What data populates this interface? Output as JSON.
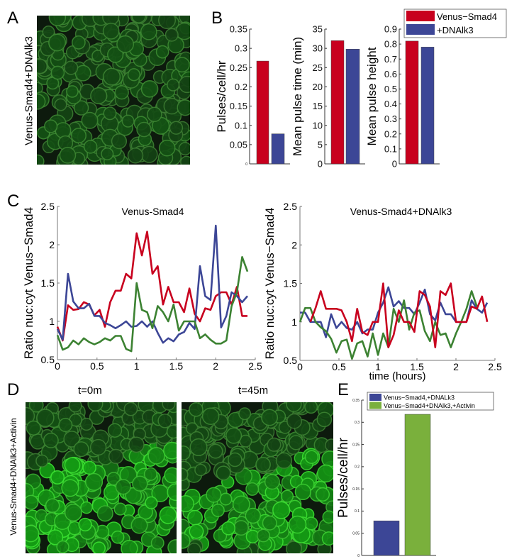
{
  "panels": {
    "a": "A",
    "b": "B",
    "c": "C",
    "d": "D",
    "e": "E"
  },
  "panel_a": {
    "side_label": "Venus-Smad4+DNAlk3"
  },
  "panel_d": {
    "side_label": "Venus-Smad4+DNAlk3+Activin",
    "titles": [
      "t=0m",
      "t=45m"
    ]
  },
  "colors": {
    "red": "#c8001e",
    "blue": "#3c4696",
    "green": "#3c8232",
    "lightgreen": "#7ab03c",
    "cells": "#4fbf3f"
  },
  "chart_data": [
    {
      "id": "B1",
      "type": "bar",
      "ylabel": "Pulses/cell/hr",
      "ylim": [
        0,
        0.35
      ],
      "yticks": [
        "0",
        "0.05",
        "0.1",
        "0.15",
        "0.2",
        "0.25",
        "0.3",
        "0.35"
      ],
      "tickvals": [
        0,
        0.05,
        0.1,
        0.15,
        0.2,
        0.25,
        0.3,
        0.35
      ],
      "values": [
        0.267,
        0.078
      ],
      "colors": [
        "#c8001e",
        "#3c4696"
      ]
    },
    {
      "id": "B2",
      "type": "bar",
      "ylabel": "Mean pulse time (min)",
      "ylim": [
        0,
        35
      ],
      "yticks": [
        "0",
        "5",
        "10",
        "15",
        "20",
        "25",
        "30",
        "35"
      ],
      "tickvals": [
        0,
        5,
        10,
        15,
        20,
        25,
        30,
        35
      ],
      "values": [
        32,
        29.8
      ],
      "colors": [
        "#c8001e",
        "#3c4696"
      ]
    },
    {
      "id": "B3",
      "type": "bar",
      "ylabel": "Mean pulse height",
      "ylim": [
        0,
        0.9
      ],
      "yticks": [
        "0",
        "0.1",
        "0.2",
        "0.3",
        "0.4",
        "0.5",
        "0.6",
        "0.7",
        "0.8",
        "0.9"
      ],
      "tickvals": [
        0,
        0.1,
        0.2,
        0.3,
        0.4,
        0.5,
        0.6,
        0.7,
        0.8,
        0.9
      ],
      "values": [
        0.82,
        0.78
      ],
      "colors": [
        "#c8001e",
        "#3c4696"
      ],
      "legend": [
        {
          "label": "Venus−Smad4",
          "color": "#c8001e"
        },
        {
          "label": "+DNAlk3",
          "color": "#3c4696"
        }
      ],
      "legend_position": "top-right"
    },
    {
      "id": "C1",
      "type": "line",
      "title": "Venus-Smad4",
      "ylabel": "Ratio nuc:cyt Venus−Smad4",
      "xlabel": "",
      "xlim": [
        0,
        2.5
      ],
      "ylim": [
        0.5,
        2.5
      ],
      "xticks": [
        "0",
        "0.5",
        "1",
        "1.5",
        "2",
        "2.5"
      ],
      "xtickvals": [
        0,
        0.5,
        1,
        1.5,
        2,
        2.5
      ],
      "yticks": [
        "0.5",
        "1",
        "1.5",
        "2",
        "2.5"
      ],
      "ytickvals": [
        0.5,
        1,
        1.5,
        2,
        2.5
      ],
      "x_step": 0.0667,
      "series": [
        {
          "color": "#c8001e",
          "values": [
            0.93,
            0.75,
            1.21,
            1.15,
            1.16,
            1.25,
            1.22,
            1.08,
            1.15,
            0.93,
            1.25,
            1.4,
            1.4,
            1.62,
            1.56,
            2.15,
            1.86,
            2.17,
            1.62,
            1.72,
            1.22,
            1.45,
            1.25,
            1.25,
            1.12,
            1.43,
            1.1,
            1.0,
            1.17,
            1.15,
            1.33,
            1.38,
            1.38,
            1.22,
            1.45,
            1.07,
            1.07
          ]
        },
        {
          "color": "#3c4696",
          "values": [
            0.9,
            0.76,
            1.62,
            1.26,
            1.17,
            1.17,
            1.23,
            1.07,
            1.07,
            0.98,
            0.95,
            0.91,
            0.95,
            1.0,
            0.93,
            0.94,
            1.0,
            0.93,
            1.0,
            0.85,
            0.72,
            0.78,
            0.74,
            0.83,
            0.86,
            0.98,
            0.9,
            1.72,
            1.33,
            1.28,
            2.25,
            0.92,
            1.07,
            1.38,
            1.33,
            1.25,
            1.33
          ]
        },
        {
          "color": "#3c8232",
          "values": [
            0.82,
            0.63,
            0.66,
            0.75,
            0.7,
            0.78,
            0.73,
            0.7,
            0.73,
            0.78,
            0.75,
            0.81,
            0.81,
            0.64,
            0.61,
            1.5,
            1.15,
            1.12,
            0.91,
            1.2,
            1.12,
            1.0,
            1.22,
            0.88,
            1.0,
            1.0,
            1.0,
            0.78,
            0.83,
            0.76,
            0.71,
            0.71,
            0.75,
            1.2,
            1.38,
            1.84,
            1.65
          ]
        }
      ]
    },
    {
      "id": "C2",
      "type": "line",
      "title": "Venus-Smad4+DNAlk3",
      "ylabel": "Ratio nuc:cyt Venus−Smad4",
      "xlabel": "time (hours)",
      "xlim": [
        0,
        2.5
      ],
      "ylim": [
        0.5,
        2.5
      ],
      "xticks": [
        "0",
        "0.5",
        "1",
        "1.5",
        "2",
        "2.5"
      ],
      "xtickvals": [
        0,
        0.5,
        1,
        1.5,
        2,
        2.5
      ],
      "yticks": [
        "0.5",
        "1",
        "1.5",
        "2",
        "2.5"
      ],
      "ytickvals": [
        0.5,
        1,
        1.5,
        2,
        2.5
      ],
      "x_step": 0.0667,
      "series": [
        {
          "color": "#3c4696",
          "values": [
            1.12,
            1.12,
            1.0,
            1.0,
            1.0,
            0.8,
            1.1,
            0.92,
            1.0,
            0.92,
            0.9,
            1.0,
            0.85,
            0.9,
            0.9,
            1.12,
            1.25,
            1.45,
            1.2,
            1.27,
            1.18,
            1.18,
            1.1,
            1.25,
            1.42,
            1.1,
            1.02,
            1.25,
            1.1,
            1.1,
            1.0,
            1.0,
            1.0,
            1.28,
            1.17,
            1.12,
            1.25
          ]
        },
        {
          "color": "#3c8232",
          "values": [
            1.0,
            1.18,
            1.18,
            1.0,
            0.93,
            0.88,
            0.78,
            0.6,
            0.75,
            0.77,
            0.52,
            0.72,
            0.75,
            0.55,
            0.85,
            0.57,
            0.85,
            0.67,
            1.17,
            1.0,
            1.28,
            0.9,
            1.12,
            1.15,
            0.88,
            0.75,
            1.0,
            0.83,
            0.85,
            0.67,
            0.85,
            1.0,
            1.17,
            1.4,
            1.2,
            null,
            null
          ]
        },
        {
          "color": "#c8001e",
          "values": [
            null,
            null,
            1.0,
            1.18,
            1.4,
            1.17,
            1.17,
            1.17,
            1.15,
            1.0,
            0.75,
            1.17,
            0.87,
            0.83,
            1.0,
            1.0,
            1.5,
            0.67,
            0.83,
            1.15,
            1.0,
            1.0,
            0.87,
            1.4,
            1.35,
            1.2,
            0.67,
            1.4,
            1.35,
            1.5,
            1.0,
            1.0,
            1.0,
            1.2,
            1.17,
            1.33,
            1.0
          ]
        }
      ]
    },
    {
      "id": "E",
      "type": "bar",
      "ylabel": "Pulses/cell/hr",
      "ylim": [
        0,
        0.35
      ],
      "yticks": [
        "0",
        "0.05",
        "0.1",
        "0.15",
        "0.2",
        "0.25",
        "0.3",
        "0.35"
      ],
      "tickvals": [
        0,
        0.05,
        0.1,
        0.15,
        0.2,
        0.25,
        0.3,
        0.35
      ],
      "values": [
        0.078,
        0.318
      ],
      "colors": [
        "#3c4696",
        "#7ab03c"
      ],
      "legend": [
        {
          "label": "Venus−Smad4,+DNALk3",
          "color": "#3c4696"
        },
        {
          "label": "Venus−Smad4+DNAlk3,+Activin",
          "color": "#7ab03c"
        }
      ],
      "legend_position": "top"
    }
  ]
}
